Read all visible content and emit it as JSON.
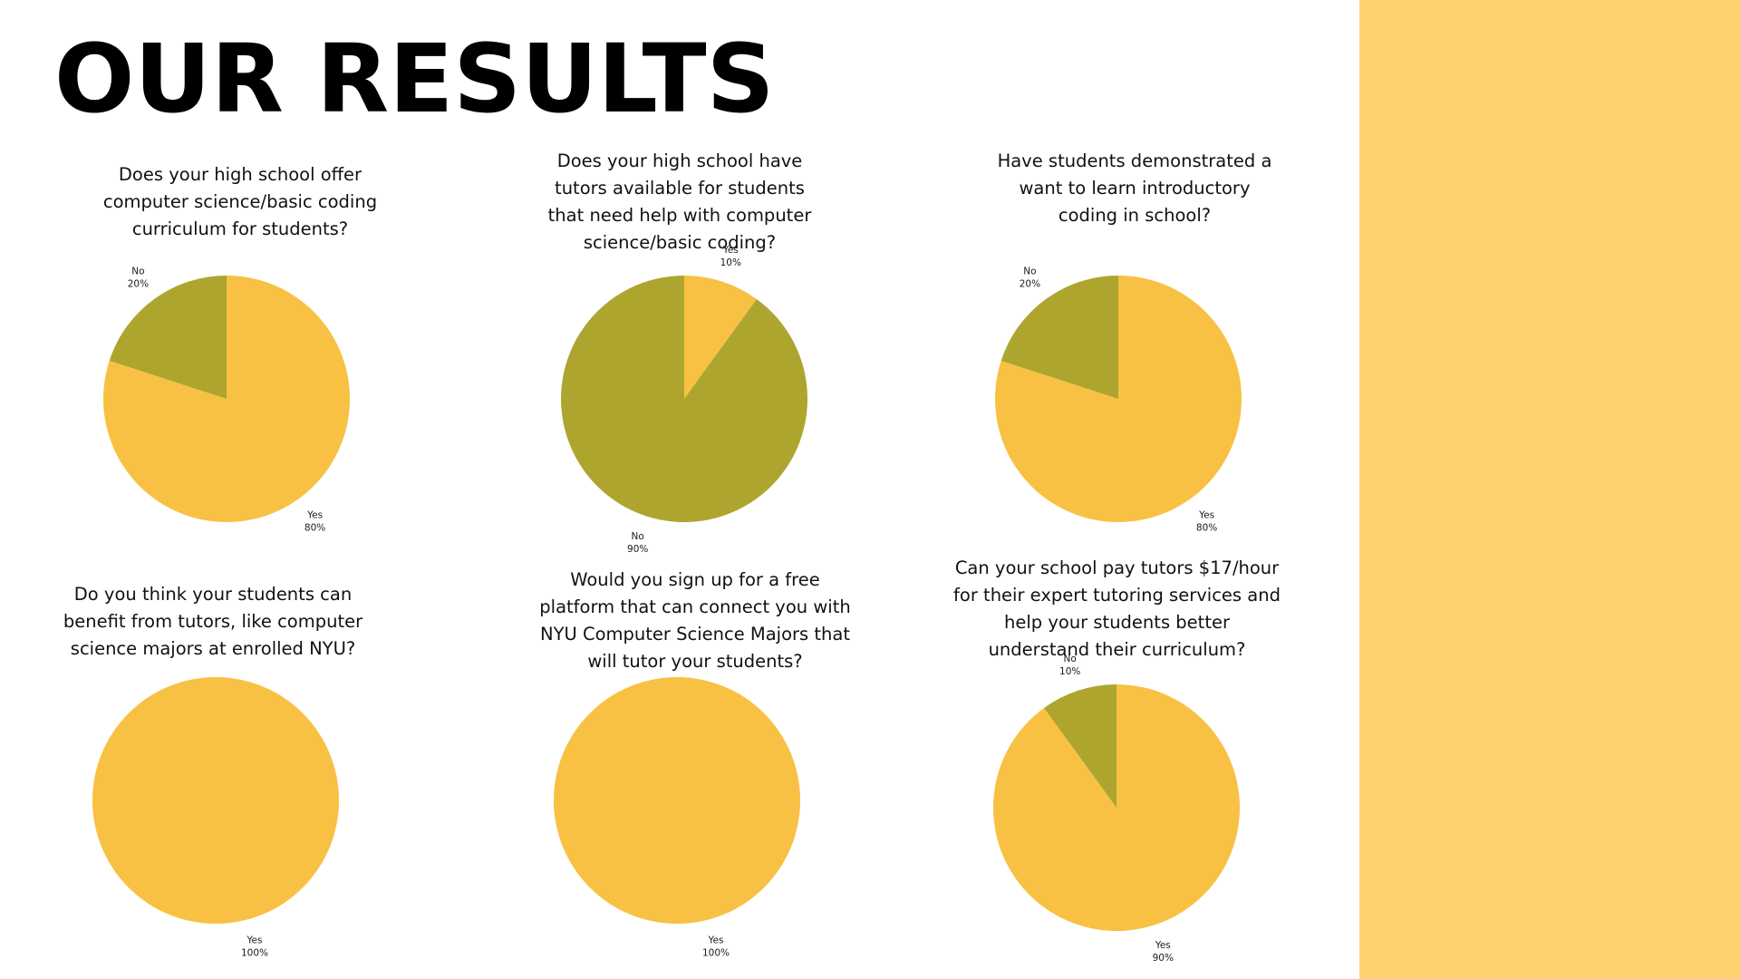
{
  "page": {
    "title": "OUR RESULTS",
    "panel_color": "#FDD36F"
  },
  "colors": {
    "yes": "#F8C143",
    "no": "#ADA52E"
  },
  "chart_data": [
    {
      "type": "pie",
      "title": "Does your high school offer\ncomputer science/basic coding\ncurriculum for students?",
      "slices": [
        {
          "label": "Yes",
          "value": 80,
          "pct_label": "80%",
          "color": "#F8C143"
        },
        {
          "label": "No",
          "value": 20,
          "pct_label": "20%",
          "color": "#ADA52E"
        }
      ]
    },
    {
      "type": "pie",
      "title": "Does your high school have\ntutors available for students\nthat need help with computer\nscience/basic coding?",
      "slices": [
        {
          "label": "Yes",
          "value": 10,
          "pct_label": "10%",
          "color": "#F8C143"
        },
        {
          "label": "No",
          "value": 90,
          "pct_label": "90%",
          "color": "#ADA52E"
        }
      ]
    },
    {
      "type": "pie",
      "title": "Have students demonstrated a\nwant to learn introductory\ncoding in school?",
      "slices": [
        {
          "label": "Yes",
          "value": 80,
          "pct_label": "80%",
          "color": "#F8C143"
        },
        {
          "label": "No",
          "value": 20,
          "pct_label": "20%",
          "color": "#ADA52E"
        }
      ]
    },
    {
      "type": "pie",
      "title": "Do you think your students can\nbenefit from tutors, like computer\nscience majors at enrolled NYU?",
      "slices": [
        {
          "label": "Yes",
          "value": 100,
          "pct_label": "100%",
          "color": "#F8C143"
        }
      ]
    },
    {
      "type": "pie",
      "title": "Would you sign up for a free\nplatform that can connect you with\nNYU Computer Science Majors that\nwill tutor your students?",
      "slices": [
        {
          "label": "Yes",
          "value": 100,
          "pct_label": "100%",
          "color": "#F8C143"
        }
      ]
    },
    {
      "type": "pie",
      "title": "Can your school pay tutors $17/hour\nfor their expert tutoring services and\nhelp your students better\nunderstand their curriculum?",
      "slices": [
        {
          "label": "Yes",
          "value": 90,
          "pct_label": "90%",
          "color": "#F8C143"
        },
        {
          "label": "No",
          "value": 10,
          "pct_label": "10%",
          "color": "#ADA52E"
        }
      ]
    }
  ]
}
